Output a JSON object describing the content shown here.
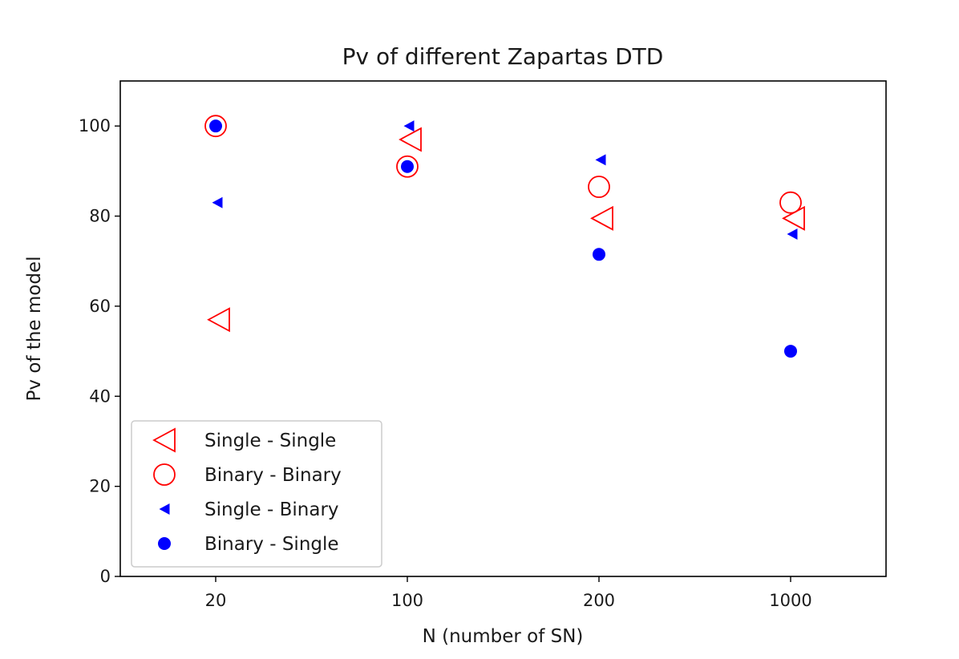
{
  "chart_data": {
    "type": "scatter",
    "title": "Pv of different Zapartas DTD",
    "xlabel": "N (number of SN)",
    "ylabel": "Pv of the model",
    "categories": [
      "20",
      "100",
      "200",
      "1000"
    ],
    "ylim": [
      0,
      110
    ],
    "yticks": [
      0,
      20,
      40,
      60,
      80,
      100
    ],
    "grid": false,
    "legend_position": "lower-left",
    "series": [
      {
        "name": "Single - Single",
        "marker": "triangle-left-open",
        "color": "#ff0000",
        "values": [
          57,
          97,
          79.5,
          79.5
        ]
      },
      {
        "name": "Binary - Binary",
        "marker": "circle-open",
        "color": "#ff0000",
        "values": [
          100,
          91,
          86.5,
          83
        ]
      },
      {
        "name": "Single - Binary",
        "marker": "triangle-left-filled",
        "color": "#0000ff",
        "values": [
          83,
          100,
          92.5,
          76
        ]
      },
      {
        "name": "Binary - Single",
        "marker": "circle-filled",
        "color": "#0000ff",
        "values": [
          100,
          91,
          71.5,
          50
        ]
      }
    ]
  }
}
